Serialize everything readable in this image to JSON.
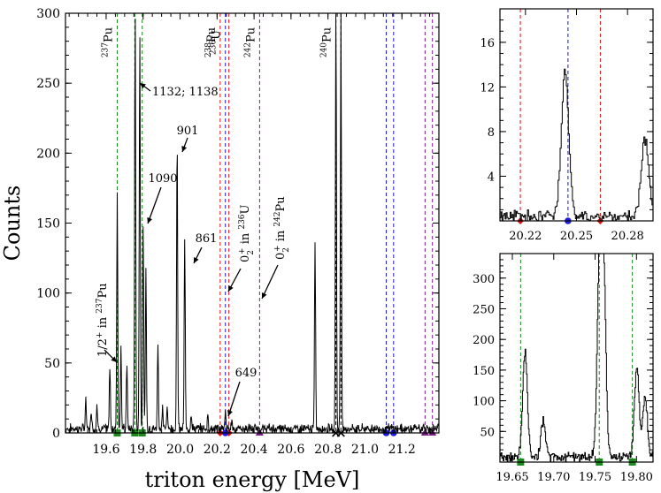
{
  "colors": {
    "Pu237": "#1a8a1a",
    "Pu238": "#e01010",
    "U236": "#1a1ae0",
    "Pu242": "#7a1a8a",
    "Pu240": "#000000",
    "spectrum": "#000000"
  },
  "chart_data": [
    {
      "type": "line",
      "xlabel": "triton energy [MeV]",
      "ylabel": "Counts",
      "xlim": [
        19.38,
        21.4
      ],
      "ylim": [
        0,
        300
      ],
      "xticks": [
        19.6,
        19.8,
        20.0,
        20.2,
        20.4,
        20.6,
        20.8,
        21.0,
        21.2
      ],
      "yticks": [
        0,
        50,
        100,
        150,
        200,
        250,
        300
      ],
      "reference_lines": [
        {
          "isotope": "Pu237",
          "label": "237Pu",
          "sup": "237",
          "base": "Pu",
          "x": [
            19.66,
            19.755,
            19.795
          ]
        },
        {
          "isotope": "Pu238",
          "label": "238Pu",
          "sup": "238",
          "base": "Pu",
          "x": [
            20.217,
            20.264
          ]
        },
        {
          "isotope": "U236",
          "label": "236U",
          "sup": "236",
          "base": "U",
          "x": [
            20.245,
            21.115,
            21.155
          ]
        },
        {
          "isotope": "Pu242",
          "label": "242Pu",
          "sup": "242",
          "base": "Pu",
          "x": [
            20.43,
            21.325,
            21.365
          ]
        },
        {
          "isotope": "Pu240",
          "label": "240Pu",
          "sup": "240",
          "base": "Pu",
          "x": [
            20.843,
            20.87
          ]
        }
      ],
      "peaks": [
        {
          "x": 19.49,
          "y": 22
        },
        {
          "x": 19.52,
          "y": 14
        },
        {
          "x": 19.55,
          "y": 18
        },
        {
          "x": 19.62,
          "y": 45
        },
        {
          "x": 19.66,
          "y": 170
        },
        {
          "x": 19.68,
          "y": 60
        },
        {
          "x": 19.712,
          "y": 48
        },
        {
          "x": 19.757,
          "y": 300
        },
        {
          "x": 19.782,
          "y": 286
        },
        {
          "x": 19.8,
          "y": 148
        },
        {
          "x": 19.815,
          "y": 115
        },
        {
          "x": 19.88,
          "y": 62
        },
        {
          "x": 19.905,
          "y": 14
        },
        {
          "x": 19.93,
          "y": 18
        },
        {
          "x": 19.984,
          "y": 210
        },
        {
          "x": 20.025,
          "y": 136
        },
        {
          "x": 20.06,
          "y": 12
        },
        {
          "x": 20.15,
          "y": 10
        },
        {
          "x": 20.245,
          "y": 12
        },
        {
          "x": 20.28,
          "y": 7
        },
        {
          "x": 20.73,
          "y": 134
        },
        {
          "x": 20.843,
          "y": 300
        },
        {
          "x": 20.87,
          "y": 300
        }
      ],
      "annotations": [
        {
          "text": "1132; 1138",
          "x": 19.78,
          "y": 250
        },
        {
          "text": "901",
          "x": 19.99,
          "y": 200
        },
        {
          "text": "1090",
          "x": 19.8,
          "y": 160
        },
        {
          "text": "861",
          "x": 20.03,
          "y": 120
        },
        {
          "text": "649",
          "x": 20.25,
          "y": 0
        },
        {
          "text": "1/2+ in 237Pu",
          "x": 19.65,
          "y": 50
        },
        {
          "text": "0_2+ in 236U",
          "x": 20.25,
          "y": 100
        },
        {
          "text": "0_2+ in 242Pu",
          "x": 20.44,
          "y": 100
        }
      ]
    },
    {
      "type": "line",
      "xlim": [
        20.205,
        20.295
      ],
      "ylim": [
        0,
        19
      ],
      "xticks": [
        20.22,
        20.25,
        20.28
      ],
      "xticklabels": [
        "20.22",
        "20.25",
        "20.28"
      ],
      "yticks": [
        4,
        8,
        12,
        16
      ],
      "reference_lines": [
        {
          "isotope": "Pu238",
          "x": [
            20.217,
            20.264
          ]
        },
        {
          "isotope": "U236",
          "x": [
            20.245
          ]
        }
      ],
      "peaks": [
        {
          "x": 20.243,
          "y": 13
        },
        {
          "x": 20.29,
          "y": 7
        }
      ]
    },
    {
      "type": "line",
      "xlim": [
        19.635,
        19.82
      ],
      "ylim": [
        0,
        340
      ],
      "xticks": [
        19.65,
        19.7,
        19.75,
        19.8
      ],
      "xticklabels": [
        "19.65",
        "19.70",
        "19.75",
        "19.80"
      ],
      "yticks": [
        50,
        100,
        150,
        200,
        250,
        300
      ],
      "reference_lines": [
        {
          "isotope": "Pu237",
          "x": [
            19.66,
            19.755,
            19.795
          ]
        }
      ],
      "peaks": [
        {
          "x": 19.665,
          "y": 170
        },
        {
          "x": 19.687,
          "y": 58
        },
        {
          "x": 19.755,
          "y": 315
        },
        {
          "x": 19.76,
          "y": 285
        },
        {
          "x": 19.8,
          "y": 150
        },
        {
          "x": 19.81,
          "y": 100
        }
      ]
    }
  ]
}
